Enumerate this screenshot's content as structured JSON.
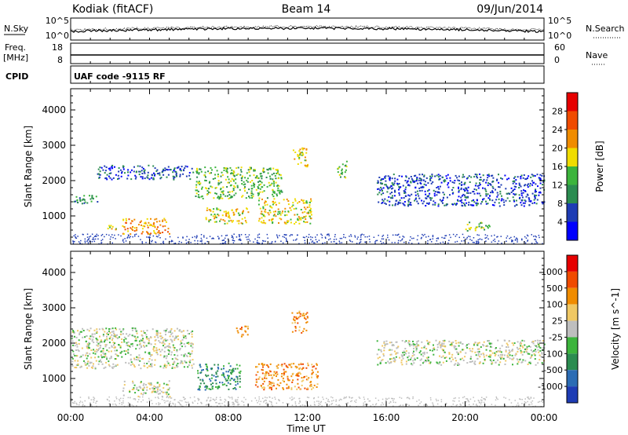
{
  "header": {
    "station": "Kodiak (fitACF)",
    "beam": "Beam 14",
    "date": "09/Jun/2014"
  },
  "top_panels": {
    "nsky_label": "N.Sky",
    "nsearch_label": "N.Search",
    "nsky_ticks": [
      "10^5",
      "10^0"
    ],
    "nsearch_ticks": [
      "10^5",
      "10^0"
    ],
    "freq_label_1": "Freq.",
    "freq_label_2": "[MHz]",
    "freq_ticks": [
      "18",
      "8"
    ],
    "nave_label": "Nave",
    "nave_ticks": [
      "60",
      "0"
    ],
    "cpid_label": "CPID",
    "cpid_text": "UAF code -9115 RF"
  },
  "chart_data": [
    {
      "type": "heatmap",
      "name": "Power",
      "ylabel": "Slant Range [km]",
      "yticks": [
        1000,
        2000,
        3000,
        4000
      ],
      "ylim": [
        200,
        4600
      ],
      "xlim": [
        0,
        24
      ],
      "colorbar": {
        "label": "Power [dB]",
        "ticks": [
          "28",
          "24",
          "20",
          "16",
          "12",
          "8",
          "4"
        ],
        "colors": [
          "#0000ff",
          "#1e3cb4",
          "#2b8c50",
          "#3cb43c",
          "#f0dc00",
          "#f08c00",
          "#f04b00",
          "#e60000"
        ]
      },
      "regions": [
        {
          "t0": 0.0,
          "t1": 1.5,
          "r0": 1350,
          "r1": 1600,
          "level": 2
        },
        {
          "t0": 1.3,
          "t1": 6.2,
          "r0": 2050,
          "r1": 2450,
          "level": 1
        },
        {
          "t0": 1.8,
          "t1": 2.3,
          "r0": 600,
          "r1": 800,
          "level": 4
        },
        {
          "t0": 2.6,
          "t1": 5.0,
          "r0": 500,
          "r1": 950,
          "level": 5
        },
        {
          "t0": 6.3,
          "t1": 10.7,
          "r0": 1500,
          "r1": 2400,
          "level": 3
        },
        {
          "t0": 6.8,
          "t1": 9.0,
          "r0": 800,
          "r1": 1250,
          "level": 4
        },
        {
          "t0": 9.5,
          "t1": 12.2,
          "r0": 800,
          "r1": 1500,
          "level": 4
        },
        {
          "t0": 11.2,
          "t1": 12.0,
          "r0": 2400,
          "r1": 2950,
          "level": 4
        },
        {
          "t0": 13.5,
          "t1": 14.0,
          "r0": 2100,
          "r1": 2600,
          "level": 3
        },
        {
          "t0": 15.5,
          "t1": 24.0,
          "r0": 1300,
          "r1": 2200,
          "level": 1
        },
        {
          "t0": 20.0,
          "t1": 21.3,
          "r0": 600,
          "r1": 850,
          "level": 3
        }
      ]
    },
    {
      "type": "heatmap",
      "name": "Velocity",
      "ylabel": "Slant Range [km]",
      "yticks": [
        1000,
        2000,
        3000,
        4000
      ],
      "ylim": [
        200,
        4600
      ],
      "xlim": [
        0,
        24
      ],
      "colorbar": {
        "label": "Velocity [m s^-1]",
        "ticks": [
          "1000",
          "500",
          "100",
          "25",
          "-25",
          "-100",
          "-500",
          "-1000"
        ],
        "colors": [
          "#1e3cb4",
          "#2b6cb4",
          "#2b8c50",
          "#3cb43c",
          "#bebebe",
          "#f0c864",
          "#f08c00",
          "#f04b00",
          "#e60000"
        ]
      },
      "regions": [
        {
          "t0": 0.0,
          "t1": 6.2,
          "r0": 1300,
          "r1": 2450,
          "level": 4
        },
        {
          "t0": 2.6,
          "t1": 5.0,
          "r0": 500,
          "r1": 950,
          "level": 4
        },
        {
          "t0": 6.4,
          "t1": 8.6,
          "r0": 700,
          "r1": 1450,
          "level": 2
        },
        {
          "t0": 9.3,
          "t1": 12.5,
          "r0": 700,
          "r1": 1450,
          "level": 6
        },
        {
          "t0": 11.2,
          "t1": 12.0,
          "r0": 2300,
          "r1": 2950,
          "level": 6
        },
        {
          "t0": 8.3,
          "t1": 9.0,
          "r0": 2200,
          "r1": 2500,
          "level": 6
        },
        {
          "t0": 15.5,
          "t1": 24.0,
          "r0": 1400,
          "r1": 2100,
          "level": 4
        }
      ]
    }
  ],
  "x_axis": {
    "ticks": [
      "00:00",
      "04:00",
      "08:00",
      "12:00",
      "16:00",
      "20:00",
      "00:00"
    ],
    "label": "Time UT"
  }
}
